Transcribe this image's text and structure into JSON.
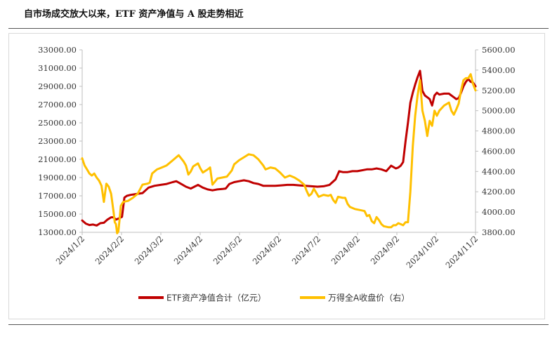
{
  "header": {
    "title": "自市场成交放大以来，ETF 资产净值与 A 股走势相近"
  },
  "chart_data": {
    "type": "line",
    "title": "自市场成交放大以来，ETF 资产净值与 A 股走势相近",
    "xlabel": "",
    "ylabel_left": "",
    "ylabel_right": "",
    "x_tick_labels": [
      "2024/1/2",
      "2024/2/2",
      "2024/3/2",
      "2024/4/2",
      "2024/5/2",
      "2024/6/2",
      "2024/7/2",
      "2024/8/2",
      "2024/9/2",
      "2024/10/2",
      "2024/11/2"
    ],
    "y_left_ticks": [
      "33000.00",
      "31000.00",
      "29000.00",
      "27000.00",
      "25000.00",
      "23000.00",
      "21000.00",
      "19000.00",
      "17000.00",
      "15000.00",
      "13000.00"
    ],
    "y_right_ticks": [
      "5600.00",
      "5400.00",
      "5200.00",
      "5000.00",
      "4800.00",
      "4600.00",
      "4400.00",
      "4200.00",
      "4000.00",
      "3800.00"
    ],
    "ylim_left": [
      13000,
      33000
    ],
    "ylim_right": [
      3800,
      5600
    ],
    "xlim_days": [
      0,
      326
    ],
    "grid": false,
    "legend_position": "bottom",
    "series": [
      {
        "name": "ETF资产净值合计（亿元）",
        "axis": "left",
        "color": "#c00000",
        "points": [
          [
            0,
            14300
          ],
          [
            3,
            13950
          ],
          [
            6,
            13800
          ],
          [
            9,
            13850
          ],
          [
            12,
            13750
          ],
          [
            15,
            14000
          ],
          [
            18,
            14050
          ],
          [
            21,
            14400
          ],
          [
            24,
            14650
          ],
          [
            26,
            14650
          ],
          [
            28,
            14400
          ],
          [
            30,
            14500
          ],
          [
            33,
            14700
          ],
          [
            35,
            16800
          ],
          [
            37,
            17000
          ],
          [
            40,
            17100
          ],
          [
            45,
            17200
          ],
          [
            50,
            17300
          ],
          [
            55,
            17900
          ],
          [
            60,
            18100
          ],
          [
            65,
            18200
          ],
          [
            70,
            18300
          ],
          [
            75,
            18500
          ],
          [
            78,
            18600
          ],
          [
            82,
            18300
          ],
          [
            86,
            18000
          ],
          [
            90,
            17800
          ],
          [
            93,
            18000
          ],
          [
            96,
            18200
          ],
          [
            100,
            17900
          ],
          [
            104,
            17700
          ],
          [
            108,
            17600
          ],
          [
            112,
            17700
          ],
          [
            116,
            17750
          ],
          [
            119,
            17800
          ],
          [
            122,
            18300
          ],
          [
            126,
            18500
          ],
          [
            130,
            18600
          ],
          [
            134,
            18700
          ],
          [
            138,
            18600
          ],
          [
            142,
            18400
          ],
          [
            146,
            18300
          ],
          [
            150,
            18100
          ],
          [
            155,
            18100
          ],
          [
            160,
            18100
          ],
          [
            165,
            18150
          ],
          [
            170,
            18200
          ],
          [
            175,
            18200
          ],
          [
            180,
            18150
          ],
          [
            185,
            18100
          ],
          [
            190,
            18050
          ],
          [
            195,
            18000
          ],
          [
            200,
            18050
          ],
          [
            205,
            18200
          ],
          [
            210,
            18800
          ],
          [
            213,
            19700
          ],
          [
            216,
            19600
          ],
          [
            220,
            19600
          ],
          [
            224,
            19700
          ],
          [
            228,
            19700
          ],
          [
            232,
            19800
          ],
          [
            236,
            19900
          ],
          [
            240,
            19900
          ],
          [
            244,
            20000
          ],
          [
            248,
            19900
          ],
          [
            252,
            19700
          ],
          [
            256,
            20300
          ],
          [
            260,
            20000
          ],
          [
            262,
            20100
          ],
          [
            264,
            20300
          ],
          [
            266,
            20700
          ],
          [
            268,
            23000
          ],
          [
            270,
            25000
          ],
          [
            272,
            27200
          ],
          [
            274,
            28300
          ],
          [
            276,
            29200
          ],
          [
            278,
            30000
          ],
          [
            280,
            30700
          ],
          [
            282,
            28500
          ],
          [
            284,
            28000
          ],
          [
            286,
            27800
          ],
          [
            288,
            27600
          ],
          [
            290,
            26900
          ],
          [
            292,
            28000
          ],
          [
            294,
            28300
          ],
          [
            296,
            28100
          ],
          [
            300,
            28200
          ],
          [
            304,
            28200
          ],
          [
            306,
            28000
          ],
          [
            308,
            27800
          ],
          [
            310,
            27600
          ],
          [
            312,
            27700
          ],
          [
            314,
            28300
          ],
          [
            316,
            29000
          ],
          [
            318,
            29500
          ],
          [
            320,
            29800
          ],
          [
            322,
            29500
          ],
          [
            324,
            29400
          ],
          [
            326,
            29000
          ]
        ]
      },
      {
        "name": "万得全A收盘价（右）",
        "axis": "right",
        "color": "#ffc000",
        "points": [
          [
            0,
            4530
          ],
          [
            2,
            4460
          ],
          [
            4,
            4420
          ],
          [
            6,
            4380
          ],
          [
            8,
            4360
          ],
          [
            10,
            4380
          ],
          [
            12,
            4340
          ],
          [
            14,
            4310
          ],
          [
            16,
            4260
          ],
          [
            18,
            4100
          ],
          [
            20,
            4280
          ],
          [
            22,
            4250
          ],
          [
            24,
            4180
          ],
          [
            26,
            4000
          ],
          [
            27,
            3900
          ],
          [
            28,
            3880
          ],
          [
            29,
            3790
          ],
          [
            30,
            3810
          ],
          [
            31,
            3930
          ],
          [
            32,
            4060
          ],
          [
            34,
            4100
          ],
          [
            38,
            4110
          ],
          [
            42,
            4140
          ],
          [
            46,
            4180
          ],
          [
            50,
            4270
          ],
          [
            54,
            4280
          ],
          [
            56,
            4290
          ],
          [
            58,
            4380
          ],
          [
            62,
            4420
          ],
          [
            66,
            4440
          ],
          [
            70,
            4460
          ],
          [
            72,
            4480
          ],
          [
            76,
            4520
          ],
          [
            80,
            4560
          ],
          [
            84,
            4500
          ],
          [
            86,
            4460
          ],
          [
            88,
            4370
          ],
          [
            90,
            4400
          ],
          [
            92,
            4450
          ],
          [
            96,
            4480
          ],
          [
            98,
            4430
          ],
          [
            100,
            4390
          ],
          [
            104,
            4420
          ],
          [
            106,
            4440
          ],
          [
            108,
            4270
          ],
          [
            110,
            4300
          ],
          [
            112,
            4330
          ],
          [
            116,
            4340
          ],
          [
            120,
            4350
          ],
          [
            124,
            4410
          ],
          [
            126,
            4470
          ],
          [
            130,
            4510
          ],
          [
            134,
            4540
          ],
          [
            138,
            4570
          ],
          [
            142,
            4560
          ],
          [
            146,
            4520
          ],
          [
            150,
            4460
          ],
          [
            152,
            4420
          ],
          [
            156,
            4440
          ],
          [
            160,
            4430
          ],
          [
            164,
            4390
          ],
          [
            168,
            4340
          ],
          [
            172,
            4360
          ],
          [
            176,
            4340
          ],
          [
            180,
            4310
          ],
          [
            184,
            4270
          ],
          [
            186,
            4210
          ],
          [
            188,
            4160
          ],
          [
            190,
            4180
          ],
          [
            192,
            4230
          ],
          [
            194,
            4190
          ],
          [
            196,
            4150
          ],
          [
            200,
            4170
          ],
          [
            204,
            4160
          ],
          [
            206,
            4170
          ],
          [
            208,
            4120
          ],
          [
            210,
            4090
          ],
          [
            212,
            4150
          ],
          [
            216,
            4140
          ],
          [
            218,
            4140
          ],
          [
            220,
            4080
          ],
          [
            222,
            4050
          ],
          [
            226,
            4030
          ],
          [
            230,
            4020
          ],
          [
            234,
            4010
          ],
          [
            236,
            3960
          ],
          [
            238,
            3970
          ],
          [
            240,
            3910
          ],
          [
            242,
            3890
          ],
          [
            244,
            3950
          ],
          [
            246,
            3920
          ],
          [
            248,
            3880
          ],
          [
            250,
            3860
          ],
          [
            254,
            3850
          ],
          [
            256,
            3850
          ],
          [
            258,
            3870
          ],
          [
            260,
            3870
          ],
          [
            262,
            3890
          ],
          [
            264,
            3880
          ],
          [
            266,
            3870
          ],
          [
            268,
            3900
          ],
          [
            270,
            3900
          ],
          [
            272,
            4200
          ],
          [
            274,
            4650
          ],
          [
            276,
            4950
          ],
          [
            278,
            5150
          ],
          [
            280,
            5300
          ],
          [
            282,
            5000
          ],
          [
            284,
            4900
          ],
          [
            286,
            4750
          ],
          [
            288,
            4900
          ],
          [
            290,
            4850
          ],
          [
            292,
            5000
          ],
          [
            294,
            4950
          ],
          [
            296,
            5000
          ],
          [
            300,
            5050
          ],
          [
            304,
            5080
          ],
          [
            306,
            5000
          ],
          [
            308,
            4960
          ],
          [
            310,
            5010
          ],
          [
            312,
            5070
          ],
          [
            314,
            5200
          ],
          [
            316,
            5300
          ],
          [
            318,
            5320
          ],
          [
            320,
            5320
          ],
          [
            322,
            5360
          ],
          [
            324,
            5260
          ],
          [
            326,
            5200
          ]
        ]
      }
    ]
  }
}
